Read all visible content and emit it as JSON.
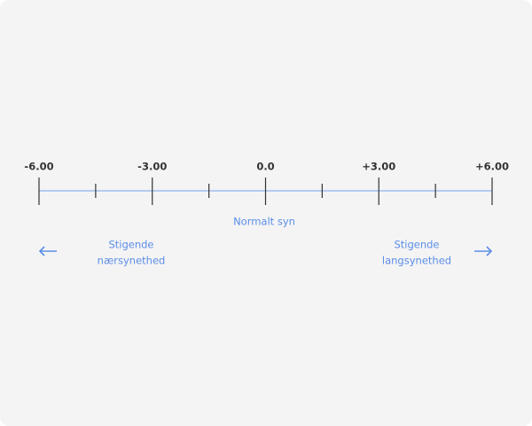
{
  "scale": {
    "range": [
      -6,
      6
    ],
    "major_ticks": [
      {
        "value": -6,
        "label": "-6.00"
      },
      {
        "value": -3,
        "label": "-3.00"
      },
      {
        "value": 0,
        "label": "0.0"
      },
      {
        "value": 3,
        "label": "+3.00"
      },
      {
        "value": 6,
        "label": "+6.00"
      }
    ],
    "minor_ticks": [
      -4.5,
      -1.5,
      1.5,
      4.5
    ]
  },
  "center_label": "Normalt syn",
  "left_label": [
    "Stigende",
    "nærsynethed"
  ],
  "right_label": [
    "Stigende",
    "langsynethed"
  ]
}
